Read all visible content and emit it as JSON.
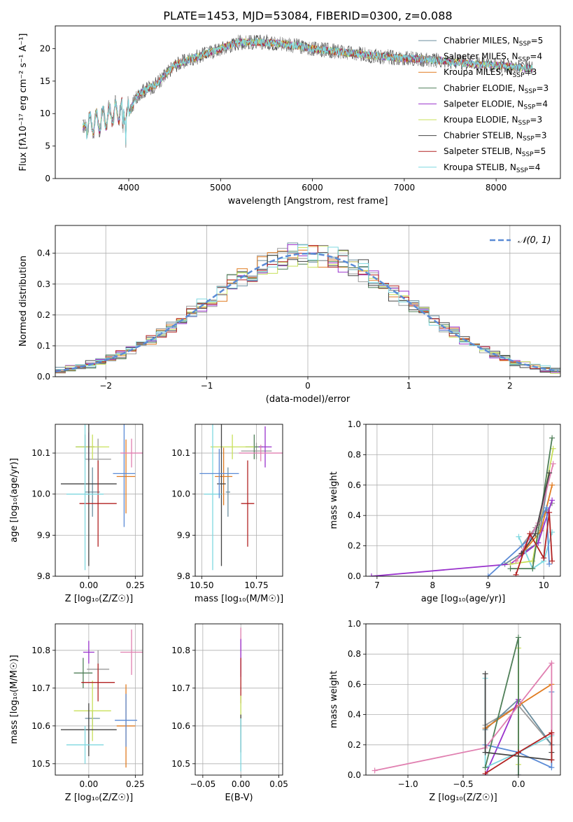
{
  "figure": {
    "title": "PLATE=1453, MJD=53084, FIBERID=0300, z=0.088"
  },
  "colors": {
    "Chabrier MILES": "#6b8e9e",
    "Salpeter MILES": "#9a9a9a",
    "Kroupa MILES": "#e07b20",
    "Chabrier ELODIE": "#4f7f58",
    "Salpeter ELODIE": "#9932cc",
    "Kroupa ELODIE": "#c8e05a",
    "Chabrier STELIB": "#444444",
    "Salpeter STELIB": "#b22222",
    "Kroupa STELIB": "#7fd8e0",
    "blue": "#5b8bd6",
    "pink": "#e07fb0"
  },
  "chart_data": [
    {
      "type": "line",
      "panel": "spectrum",
      "xlabel": "wavelength [Angstrom, rest frame]",
      "ylabel": "Flux [fλ10⁻¹⁷ erg cm⁻² s⁻¹ A⁻¹]",
      "xlim": [
        3200,
        8700
      ],
      "ylim": [
        0,
        23.5
      ],
      "xticks": [
        4000,
        5000,
        6000,
        7000,
        8000
      ],
      "yticks": [
        0,
        5,
        10,
        15,
        20
      ],
      "grid": false,
      "legend": "top-right",
      "legend_entries": [
        {
          "model": "Chabrier MILES",
          "nssp": "5"
        },
        {
          "model": "Salpeter MILES",
          "nssp": "4"
        },
        {
          "model": "Kroupa MILES",
          "nssp": "3"
        },
        {
          "model": "Chabrier ELODIE",
          "nssp": "3"
        },
        {
          "model": "Salpeter ELODIE",
          "nssp": "4"
        },
        {
          "model": "Kroupa ELODIE",
          "nssp": "3"
        },
        {
          "model": "Chabrier STELIB",
          "nssp": "3"
        },
        {
          "model": "Salpeter STELIB",
          "nssp": "5"
        },
        {
          "model": "Kroupa STELIB",
          "nssp": "4"
        }
      ],
      "continuum_x": [
        3500,
        3700,
        3900,
        4000,
        4100,
        4300,
        4500,
        4700,
        5000,
        5200,
        5500,
        5800,
        6000,
        6300,
        6600,
        7000,
        7300,
        7600,
        8000,
        8300
      ],
      "continuum_y": [
        8,
        9,
        10.5,
        10,
        13,
        14.5,
        17.5,
        18.5,
        20,
        21,
        21,
        20.5,
        20,
        19.5,
        19,
        18.5,
        18.3,
        17.8,
        17.5,
        17
      ]
    },
    {
      "type": "histogram",
      "panel": "residuals",
      "xlabel": "(data-model)/error",
      "ylabel": "Normed distribution",
      "xlim": [
        -2.5,
        2.5
      ],
      "ylim": [
        0,
        0.49
      ],
      "xticks": [
        -2,
        -1,
        0,
        1,
        2
      ],
      "yticks": [
        0.0,
        0.1,
        0.2,
        0.3,
        0.4
      ],
      "grid": true,
      "legend": "top-right",
      "reference_label": "𝒩(0, 1)",
      "bin_width": 0.1
    },
    {
      "type": "scatter",
      "panel": "Z-age",
      "xlabel": "Z [log₁₀(Z/Z☉)]",
      "ylabel": "age  [log₁₀(age/yr)]",
      "xlim": [
        -0.18,
        0.29
      ],
      "ylim": [
        9.8,
        10.17
      ],
      "xticks": [
        0.0,
        0.25
      ],
      "yticks": [
        9.8,
        9.9,
        10.0,
        10.1
      ],
      "grid": true,
      "points": [
        {
          "model": "Chabrier MILES",
          "x": 0.02,
          "xerr": 0.04,
          "y": 10.005,
          "yerr": 0.06
        },
        {
          "model": "Salpeter MILES",
          "x": 0.05,
          "xerr": 0.07,
          "y": 10.085,
          "yerr": 0.05
        },
        {
          "model": "Kroupa MILES",
          "x": 0.2,
          "xerr": 0.05,
          "y": 10.043,
          "yerr": 0.09
        },
        {
          "model": "Chabrier ELODIE",
          "x": -0.02,
          "xerr": 0.05,
          "y": 10.115,
          "yerr": 0.03
        },
        {
          "model": "Salpeter ELODIE",
          "x": 0.0,
          "xerr": 0.03,
          "y": 10.115,
          "yerr": 0.035
        },
        {
          "model": "Kroupa ELODIE",
          "x": 0.02,
          "xerr": 0.09,
          "y": 10.115,
          "yerr": 0.03
        },
        {
          "model": "Chabrier STELIB",
          "x": 0.0,
          "xerr": 0.15,
          "y": 10.025,
          "yerr": 0.2
        },
        {
          "model": "Salpeter STELIB",
          "x": 0.05,
          "xerr": 0.1,
          "y": 9.977,
          "yerr": 0.105
        },
        {
          "model": "Kroupa STELIB",
          "x": -0.02,
          "xerr": 0.1,
          "y": 10.0,
          "yerr": 0.185
        },
        {
          "model": "blue",
          "x": 0.19,
          "xerr": 0.06,
          "y": 10.05,
          "yerr": 0.13
        },
        {
          "model": "pink",
          "x": 0.23,
          "xerr": 0.06,
          "y": 10.1,
          "yerr": 0.035
        }
      ]
    },
    {
      "type": "scatter",
      "panel": "mass-age",
      "xlabel": "mass [log₁₀(M/M☉)]",
      "ylabel": "",
      "xlim": [
        10.47,
        10.87
      ],
      "ylim": [
        9.8,
        10.17
      ],
      "xticks": [
        10.5,
        10.75
      ],
      "yticks": [
        9.8,
        9.9,
        10.0,
        10.1
      ],
      "grid": true,
      "points": [
        {
          "model": "Chabrier MILES",
          "x": 10.62,
          "xerr": 0.01,
          "y": 10.005,
          "yerr": 0.06
        },
        {
          "model": "Salpeter MILES",
          "x": 10.75,
          "xerr": 0.07,
          "y": 10.105,
          "yerr": 0.02
        },
        {
          "model": "Kroupa MILES",
          "x": 10.6,
          "xerr": 0.04,
          "y": 10.043,
          "yerr": 0.07
        },
        {
          "model": "Chabrier ELODIE",
          "x": 10.74,
          "xerr": 0.04,
          "y": 10.115,
          "yerr": 0.03
        },
        {
          "model": "Salpeter ELODIE",
          "x": 10.79,
          "xerr": 0.03,
          "y": 10.115,
          "yerr": 0.05
        },
        {
          "model": "Kroupa ELODIE",
          "x": 10.64,
          "xerr": 0.1,
          "y": 10.115,
          "yerr": 0.03
        },
        {
          "model": "Chabrier STELIB",
          "x": 10.59,
          "xerr": 0.02,
          "y": 10.025,
          "yerr": 0.2
        },
        {
          "model": "Salpeter STELIB",
          "x": 10.71,
          "xerr": 0.03,
          "y": 9.977,
          "yerr": 0.105
        },
        {
          "model": "Kroupa STELIB",
          "x": 10.55,
          "xerr": 0.04,
          "y": 10.0,
          "yerr": 0.185
        },
        {
          "model": "blue",
          "x": 10.58,
          "xerr": 0.09,
          "y": 10.05,
          "yerr": 0.06
        },
        {
          "model": "pink",
          "x": 10.77,
          "xerr": 0.1,
          "y": 10.1,
          "yerr": 0.02
        }
      ]
    },
    {
      "type": "line",
      "panel": "age-massweight",
      "xlabel": "age  [log₁₀(age/yr)]",
      "ylabel": "mass weight",
      "xlim": [
        6.8,
        10.3
      ],
      "ylim": [
        0,
        1.0
      ],
      "xticks": [
        7,
        8,
        9,
        10
      ],
      "yticks": [
        0.0,
        0.2,
        0.4,
        0.6,
        0.8,
        1.0
      ],
      "grid": true,
      "series": [
        {
          "model": "Chabrier MILES",
          "x": [
            9.3,
            9.9,
            10.1
          ],
          "y": [
            0.08,
            0.22,
            0.68
          ]
        },
        {
          "model": "Salpeter MILES",
          "x": [
            9.6,
            9.85,
            10.15
          ],
          "y": [
            0.2,
            0.32,
            0.48
          ]
        },
        {
          "model": "Kroupa MILES",
          "x": [
            9.5,
            9.95,
            10.15
          ],
          "y": [
            0.1,
            0.3,
            0.6
          ]
        },
        {
          "model": "Chabrier ELODIE",
          "x": [
            9.4,
            9.8,
            10.15
          ],
          "y": [
            0.05,
            0.05,
            0.91
          ]
        },
        {
          "model": "Salpeter ELODIE",
          "x": [
            6.9,
            9.4,
            9.9,
            10.15
          ],
          "y": [
            0.0,
            0.08,
            0.22,
            0.5
          ]
        },
        {
          "model": "Kroupa ELODIE",
          "x": [
            9.4,
            9.8,
            10.17
          ],
          "y": [
            0.08,
            0.1,
            0.84
          ]
        },
        {
          "model": "Chabrier STELIB",
          "x": [
            9.6,
            9.85,
            10.1
          ],
          "y": [
            0.15,
            0.28,
            0.68
          ]
        },
        {
          "model": "Salpeter STELIB",
          "x": [
            9.5,
            9.75,
            10.0,
            10.1,
            10.15
          ],
          "y": [
            0.01,
            0.28,
            0.12,
            0.42,
            0.1
          ]
        },
        {
          "model": "Kroupa STELIB",
          "x": [
            9.55,
            9.8,
            10.0,
            10.15
          ],
          "y": [
            0.26,
            0.05,
            0.1,
            0.29
          ]
        },
        {
          "model": "blue",
          "x": [
            9.0,
            9.75,
            10.05,
            10.1
          ],
          "y": [
            0.0,
            0.25,
            0.45,
            0.08
          ]
        },
        {
          "model": "pink",
          "x": [
            9.5,
            9.9,
            10.17
          ],
          "y": [
            0.1,
            0.35,
            0.74
          ]
        }
      ]
    },
    {
      "type": "scatter",
      "panel": "Z-mass",
      "xlabel": "Z [log₁₀(Z/Z☉)]",
      "ylabel": "mass [log₁₀(M/M☉)]",
      "xlim": [
        -0.18,
        0.29
      ],
      "ylim": [
        10.47,
        10.87
      ],
      "xticks": [
        0.0,
        0.25
      ],
      "yticks": [
        10.5,
        10.6,
        10.7,
        10.8
      ],
      "grid": true,
      "points": [
        {
          "model": "Chabrier MILES",
          "x": 0.02,
          "xerr": 0.04,
          "y": 10.62,
          "yerr": 0.02
        },
        {
          "model": "Salpeter MILES",
          "x": 0.05,
          "xerr": 0.06,
          "y": 10.75,
          "yerr": 0.05
        },
        {
          "model": "Kroupa MILES",
          "x": 0.2,
          "xerr": 0.05,
          "y": 10.6,
          "yerr": 0.11
        },
        {
          "model": "Chabrier ELODIE",
          "x": -0.03,
          "xerr": 0.05,
          "y": 10.74,
          "yerr": 0.04
        },
        {
          "model": "Salpeter ELODIE",
          "x": 0.0,
          "xerr": 0.03,
          "y": 10.795,
          "yerr": 0.03
        },
        {
          "model": "Kroupa ELODIE",
          "x": 0.02,
          "xerr": 0.1,
          "y": 10.64,
          "yerr": 0.08
        },
        {
          "model": "Chabrier STELIB",
          "x": 0.0,
          "xerr": 0.15,
          "y": 10.59,
          "yerr": 0.07
        },
        {
          "model": "Salpeter STELIB",
          "x": 0.05,
          "xerr": 0.09,
          "y": 10.715,
          "yerr": 0.05
        },
        {
          "model": "Kroupa STELIB",
          "x": -0.02,
          "xerr": 0.1,
          "y": 10.55,
          "yerr": 0.05
        },
        {
          "model": "blue",
          "x": 0.2,
          "xerr": 0.06,
          "y": 10.615,
          "yerr": 0.07
        },
        {
          "model": "pink",
          "x": 0.23,
          "xerr": 0.06,
          "y": 10.795,
          "yerr": 0.06
        }
      ]
    },
    {
      "type": "scatter",
      "panel": "EBV-mass",
      "xlabel": "E(B-V)",
      "ylabel": "",
      "xlim": [
        -0.06,
        0.055
      ],
      "ylim": [
        10.47,
        10.87
      ],
      "xticks": [
        -0.05,
        0.0,
        0.05
      ],
      "yticks": [
        10.5,
        10.6,
        10.7,
        10.8
      ],
      "grid": true,
      "points": [
        {
          "model": "pink",
          "x": 0.0,
          "y": 10.8,
          "yerr": 0.06
        },
        {
          "model": "Salpeter ELODIE",
          "x": 0.0,
          "y": 10.78,
          "yerr": 0.05
        },
        {
          "model": "Salpeter STELIB",
          "x": 0.0,
          "y": 10.72,
          "yerr": 0.06
        },
        {
          "model": "Kroupa ELODIE",
          "x": 0.0,
          "y": 10.63,
          "yerr": 0.05
        },
        {
          "model": "Chabrier STELIB",
          "x": 0.0,
          "y": 10.58,
          "yerr": 0.05
        },
        {
          "model": "Kroupa STELIB",
          "x": 0.0,
          "y": 10.55,
          "yerr": 0.07
        }
      ]
    },
    {
      "type": "line",
      "panel": "Z-massweight",
      "xlabel": "Z [log₁₀(Z/Z☉)]",
      "ylabel": "mass weight",
      "xlim": [
        -1.38,
        0.38
      ],
      "ylim": [
        0,
        1.0
      ],
      "xticks": [
        -1.0,
        -0.5,
        0.0
      ],
      "yticks": [
        0.0,
        0.2,
        0.4,
        0.6,
        0.8,
        1.0
      ],
      "grid": true,
      "series": [
        {
          "model": "Chabrier MILES",
          "x": [
            -0.3,
            0.0,
            0.3
          ],
          "y": [
            0.3,
            0.5,
            0.2
          ]
        },
        {
          "model": "Salpeter MILES",
          "x": [
            -0.3,
            0.0,
            0.3
          ],
          "y": [
            0.33,
            0.46,
            0.2
          ]
        },
        {
          "model": "Kroupa MILES",
          "x": [
            -0.3,
            0.0,
            0.3,
            0.3
          ],
          "y": [
            0.31,
            0.46,
            0.6,
            0.1
          ]
        },
        {
          "model": "Chabrier ELODIE",
          "x": [
            -0.3,
            0.0,
            0.0
          ],
          "y": [
            0.05,
            0.91,
            0.0
          ]
        },
        {
          "model": "Salpeter ELODIE",
          "x": [
            -0.3,
            0.0,
            0.0
          ],
          "y": [
            0.0,
            0.5,
            0.0
          ]
        },
        {
          "model": "Kroupa ELODIE",
          "x": [
            0.0,
            0.0
          ],
          "y": [
            0.07,
            0.84
          ]
        },
        {
          "model": "Chabrier STELIB",
          "x": [
            -0.3,
            -0.3,
            0.3,
            0.3
          ],
          "y": [
            0.67,
            0.15,
            0.1,
            0.15
          ]
        },
        {
          "model": "Salpeter STELIB",
          "x": [
            -0.3,
            0.0,
            0.3,
            0.3
          ],
          "y": [
            0.01,
            0.15,
            0.28,
            0.1
          ]
        },
        {
          "model": "Kroupa STELIB",
          "x": [
            -0.3,
            -0.3,
            0.0,
            0.3
          ],
          "y": [
            0.64,
            0.05,
            0.15,
            0.26
          ]
        },
        {
          "model": "blue",
          "x": [
            -0.3,
            0.0,
            0.3,
            0.3
          ],
          "y": [
            0.2,
            0.15,
            0.05,
            0.55
          ]
        },
        {
          "model": "pink",
          "x": [
            -1.3,
            -0.3,
            0.3,
            0.3
          ],
          "y": [
            0.03,
            0.18,
            0.74,
            0.27
          ]
        }
      ]
    }
  ]
}
